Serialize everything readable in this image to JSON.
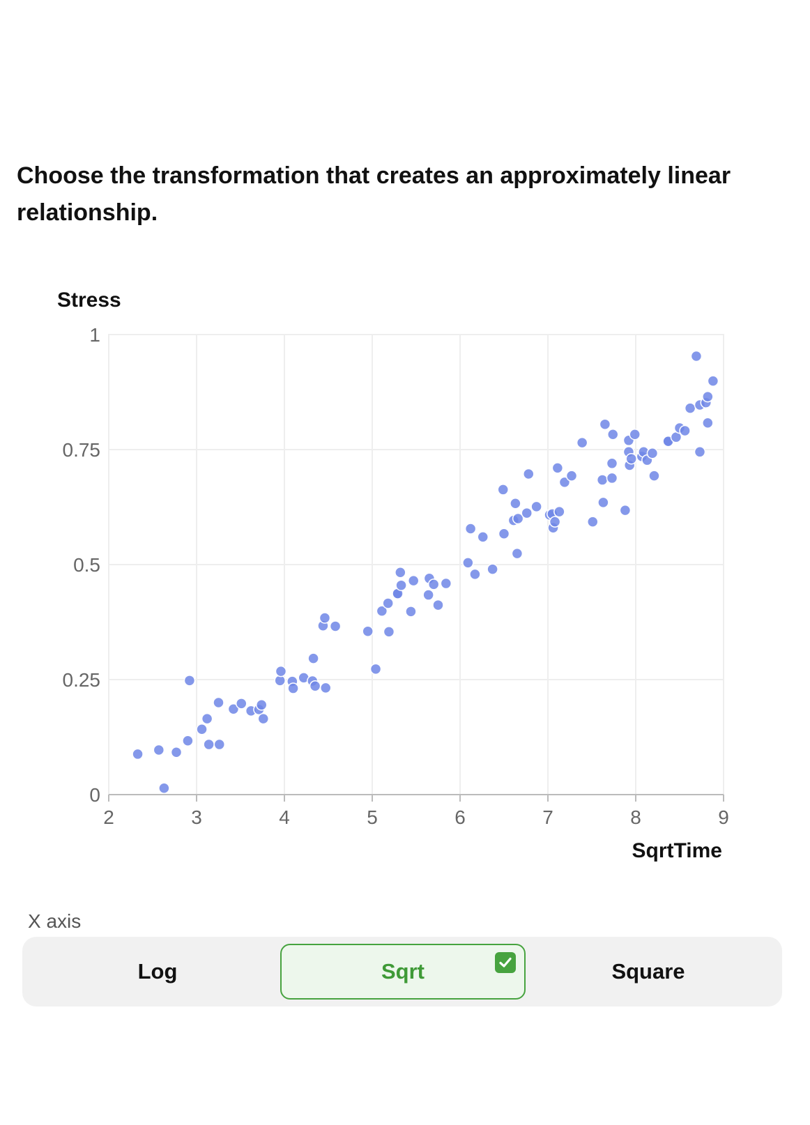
{
  "question": "Choose the transformation that creates an approximately linear relationship.",
  "x_axis_section_label": "X axis",
  "options": [
    {
      "label": "Log",
      "selected": false
    },
    {
      "label": "Sqrt",
      "selected": true
    },
    {
      "label": "Square",
      "selected": false
    }
  ],
  "colors": {
    "point": "#6f86e6",
    "selected_border": "#47a33f",
    "selected_bg": "#edf7ec",
    "selected_text": "#3f9a37",
    "segment_bg": "#f1f1f1",
    "grid": "#eeeeee"
  },
  "icons": {
    "selected_option": "checkmark-icon"
  },
  "chart_data": {
    "type": "scatter",
    "title": "",
    "xlabel": "SqrtTime",
    "ylabel": "Stress",
    "xlim": [
      2,
      9
    ],
    "ylim": [
      0,
      1
    ],
    "xticks": [
      "2",
      "3",
      "4",
      "5",
      "6",
      "7",
      "8",
      "9"
    ],
    "yticks": [
      "0",
      "0.25",
      "0.5",
      "0.75",
      "1"
    ],
    "grid": true,
    "points": [
      [
        2.33,
        0.088
      ],
      [
        2.57,
        0.097
      ],
      [
        2.63,
        0.014
      ],
      [
        2.77,
        0.092
      ],
      [
        2.9,
        0.117
      ],
      [
        2.92,
        0.248
      ],
      [
        3.06,
        0.142
      ],
      [
        3.12,
        0.165
      ],
      [
        3.14,
        0.109
      ],
      [
        3.25,
        0.2
      ],
      [
        3.26,
        0.109
      ],
      [
        3.42,
        0.186
      ],
      [
        3.51,
        0.198
      ],
      [
        3.62,
        0.182
      ],
      [
        3.71,
        0.185
      ],
      [
        3.74,
        0.195
      ],
      [
        3.76,
        0.165
      ],
      [
        3.95,
        0.248
      ],
      [
        3.96,
        0.268
      ],
      [
        4.09,
        0.246
      ],
      [
        4.1,
        0.231
      ],
      [
        4.22,
        0.254
      ],
      [
        4.32,
        0.247
      ],
      [
        4.33,
        0.296
      ],
      [
        4.35,
        0.236
      ],
      [
        4.44,
        0.367
      ],
      [
        4.46,
        0.384
      ],
      [
        4.47,
        0.232
      ],
      [
        4.58,
        0.366
      ],
      [
        4.95,
        0.355
      ],
      [
        5.04,
        0.273
      ],
      [
        5.11,
        0.399
      ],
      [
        5.18,
        0.416
      ],
      [
        5.19,
        0.354
      ],
      [
        5.28,
        0.436
      ],
      [
        5.29,
        0.437
      ],
      [
        5.32,
        0.483
      ],
      [
        5.33,
        0.455
      ],
      [
        5.44,
        0.398
      ],
      [
        5.47,
        0.465
      ],
      [
        5.64,
        0.434
      ],
      [
        5.65,
        0.47
      ],
      [
        5.7,
        0.457
      ],
      [
        5.75,
        0.412
      ],
      [
        5.84,
        0.459
      ],
      [
        6.09,
        0.504
      ],
      [
        6.12,
        0.578
      ],
      [
        6.17,
        0.479
      ],
      [
        6.26,
        0.56
      ],
      [
        6.37,
        0.49
      ],
      [
        6.49,
        0.663
      ],
      [
        6.5,
        0.567
      ],
      [
        6.61,
        0.596
      ],
      [
        6.63,
        0.633
      ],
      [
        6.65,
        0.524
      ],
      [
        6.66,
        0.6
      ],
      [
        6.76,
        0.612
      ],
      [
        6.78,
        0.697
      ],
      [
        6.87,
        0.626
      ],
      [
        7.02,
        0.608
      ],
      [
        7.05,
        0.61
      ],
      [
        7.06,
        0.58
      ],
      [
        7.08,
        0.593
      ],
      [
        7.11,
        0.71
      ],
      [
        7.13,
        0.615
      ],
      [
        7.19,
        0.679
      ],
      [
        7.27,
        0.693
      ],
      [
        7.39,
        0.765
      ],
      [
        7.51,
        0.593
      ],
      [
        7.62,
        0.684
      ],
      [
        7.63,
        0.635
      ],
      [
        7.65,
        0.805
      ],
      [
        7.73,
        0.72
      ],
      [
        7.73,
        0.688
      ],
      [
        7.74,
        0.783
      ],
      [
        7.88,
        0.618
      ],
      [
        7.92,
        0.77
      ],
      [
        7.92,
        0.745
      ],
      [
        7.93,
        0.716
      ],
      [
        7.95,
        0.73
      ],
      [
        7.99,
        0.783
      ],
      [
        8.07,
        0.735
      ],
      [
        8.09,
        0.745
      ],
      [
        8.13,
        0.727
      ],
      [
        8.19,
        0.742
      ],
      [
        8.21,
        0.693
      ],
      [
        8.36,
        0.767
      ],
      [
        8.37,
        0.768
      ],
      [
        8.46,
        0.777
      ],
      [
        8.5,
        0.797
      ],
      [
        8.56,
        0.791
      ],
      [
        8.62,
        0.84
      ],
      [
        8.69,
        0.953
      ],
      [
        8.73,
        0.847
      ],
      [
        8.73,
        0.745
      ],
      [
        8.8,
        0.852
      ],
      [
        8.82,
        0.865
      ],
      [
        8.82,
        0.808
      ],
      [
        8.88,
        0.899
      ]
    ]
  }
}
